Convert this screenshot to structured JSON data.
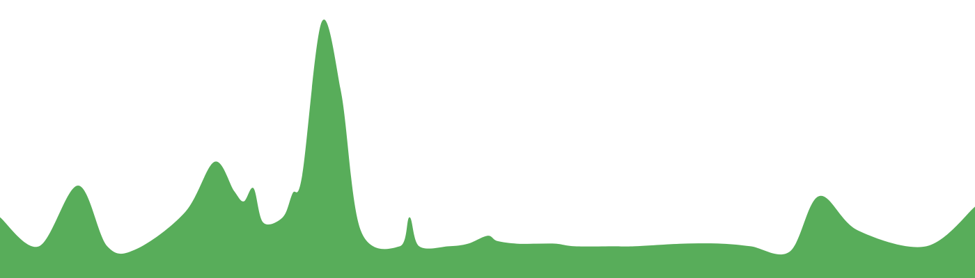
{
  "chart_data": {
    "type": "area",
    "title": "",
    "xlabel": "",
    "ylabel": "",
    "grid": false,
    "legend": "none",
    "ylim": [
      0,
      100
    ],
    "x": [
      0,
      0.04,
      0.08,
      0.11,
      0.14,
      0.19,
      0.22,
      0.24,
      0.25,
      0.26,
      0.27,
      0.29,
      0.3,
      0.31,
      0.33,
      0.35,
      0.37,
      0.41,
      0.42,
      0.43,
      0.46,
      0.48,
      0.5,
      0.51,
      0.53,
      0.55,
      0.57,
      0.59,
      0.63,
      0.65,
      0.7,
      0.74,
      0.77,
      0.81,
      0.84,
      0.88,
      0.95,
      1.0
    ],
    "series": [
      {
        "name": "",
        "color": "#58AD5A",
        "values": [
          23,
          12,
          35,
          12,
          11,
          25,
          44,
          33,
          29,
          34,
          21,
          23,
          32,
          39,
          97,
          70,
          18,
          12,
          23,
          12,
          12,
          13,
          16,
          14,
          13,
          13,
          13,
          12,
          12,
          12,
          13,
          13,
          12,
          10,
          31,
          18,
          12,
          27
        ]
      }
    ]
  }
}
